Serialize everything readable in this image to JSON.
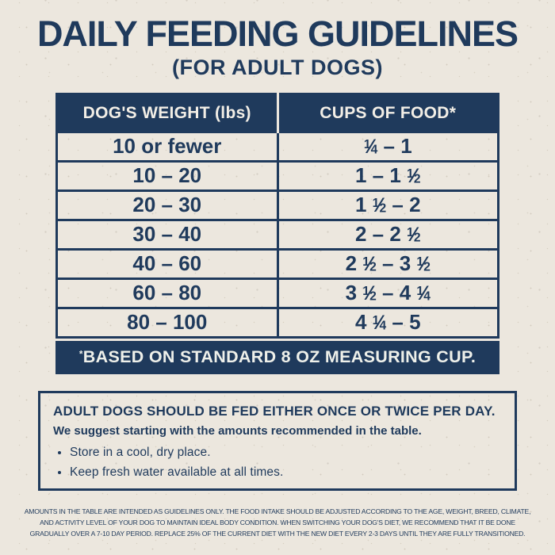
{
  "page": {
    "title": "DAILY FEEDING GUIDELINES",
    "subtitle": "(FOR ADULT DOGS)"
  },
  "table": {
    "columns": [
      "DOG'S WEIGHT (lbs)",
      "CUPS OF FOOD*"
    ],
    "rows": [
      {
        "weight": "10 or fewer",
        "cups": "1/4 – 1"
      },
      {
        "weight": "10 – 20",
        "cups": "1 – 1 1/2"
      },
      {
        "weight": "20 – 30",
        "cups": "1 1/2 – 2"
      },
      {
        "weight": "30 – 40",
        "cups": "2 – 2 1/2"
      },
      {
        "weight": "40 – 60",
        "cups": "2 1/2 – 3 1/2"
      },
      {
        "weight": "60 – 80",
        "cups": "3 1/2 – 4 1/4"
      },
      {
        "weight": "80 – 100",
        "cups": "4 1/4 – 5"
      }
    ],
    "footnote_marker": "*",
    "footnote": "BASED ON STANDARD 8 OZ MEASURING CUP."
  },
  "note_box": {
    "heading": "ADULT DOGS SHOULD BE FED EITHER ONCE OR TWICE PER DAY.",
    "subheading": "We suggest starting with the amounts recommended in the table.",
    "bullets": [
      "Store in a cool, dry place.",
      "Keep fresh water available at all times."
    ]
  },
  "fine_print": {
    "lines": [
      "AMOUNTS IN THE TABLE ARE INTENDED AS GUIDELINES ONLY. THE FOOD INTAKE SHOULD BE ADJUSTED ACCORDING TO THE AGE, WEIGHT, BREED, CLIMATE,",
      "AND ACTIVITY LEVEL OF YOUR DOG TO MAINTAIN IDEAL BODY CONDITION. WHEN SWITCHING YOUR DOG'S DIET, WE RECOMMEND THAT IT BE DONE",
      "GRADUALLY OVER A 7-10 DAY PERIOD. REPLACE 25% OF THE CURRENT DIET WITH THE NEW DIET EVERY 2-3 DAYS UNTIL THEY ARE FULLY TRANSITIONED."
    ]
  },
  "colors": {
    "navy": "#1f3a5c",
    "cream": "#ece7de",
    "header_text": "#f2eee6"
  }
}
